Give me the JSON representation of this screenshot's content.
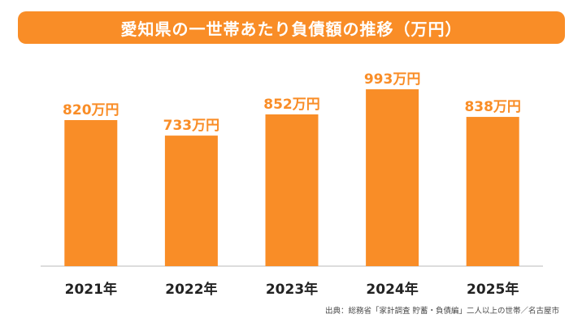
{
  "title": "愛知県の一世帯あたり負債額の推移（万円）",
  "source": "出典：総務省「家計調査 貯蓄・負債編」二人以上の世帯／名古屋市",
  "colors": {
    "bar": "#f98d27",
    "label": "#f98d27",
    "axis_text": "#222222",
    "baseline": "#bbbbbb"
  },
  "chart_data": {
    "type": "bar",
    "title": "愛知県の一世帯あたり負債額の推移（万円）",
    "categories": [
      "2021年",
      "2022年",
      "2023年",
      "2024年",
      "2025年"
    ],
    "values": [
      820,
      733,
      852,
      993,
      838
    ],
    "data_labels": [
      "820万円",
      "733万円",
      "852万円",
      "993万円",
      "838万円"
    ],
    "unit": "万円",
    "xlabel": "",
    "ylabel": "",
    "ylim": [
      0,
      1000
    ],
    "grid": false,
    "legend": "none"
  }
}
